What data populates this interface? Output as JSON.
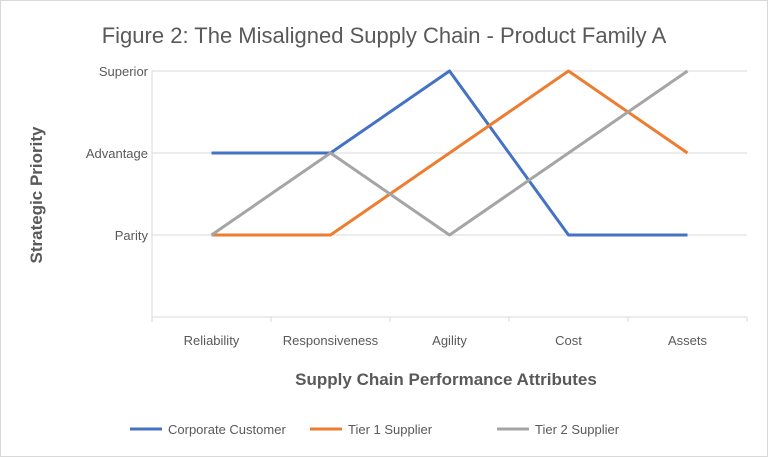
{
  "chart_data": {
    "type": "line",
    "title": "Figure 2: The Misaligned Supply Chain - Product Family A",
    "xlabel": "Supply Chain Performance Attributes",
    "ylabel": "Strategic Priority",
    "categories": [
      "Reliability",
      "Responsiveness",
      "Agility",
      "Cost",
      "Assets"
    ],
    "y_ticks": [
      {
        "value": 1,
        "label": "Parity"
      },
      {
        "value": 2,
        "label": "Advantage"
      },
      {
        "value": 3,
        "label": "Superior"
      }
    ],
    "ylim": [
      0,
      3
    ],
    "grid": true,
    "legend_position": "bottom",
    "series": [
      {
        "name": "Corporate Customer",
        "color": "#4472c4",
        "values": [
          2,
          2,
          3,
          1,
          1
        ]
      },
      {
        "name": "Tier 1 Supplier",
        "color": "#ed7d31",
        "values": [
          1,
          1,
          2,
          3,
          2
        ]
      },
      {
        "name": "Tier 2 Supplier",
        "color": "#a5a5a5",
        "values": [
          1,
          2,
          1,
          2,
          3
        ]
      }
    ]
  }
}
